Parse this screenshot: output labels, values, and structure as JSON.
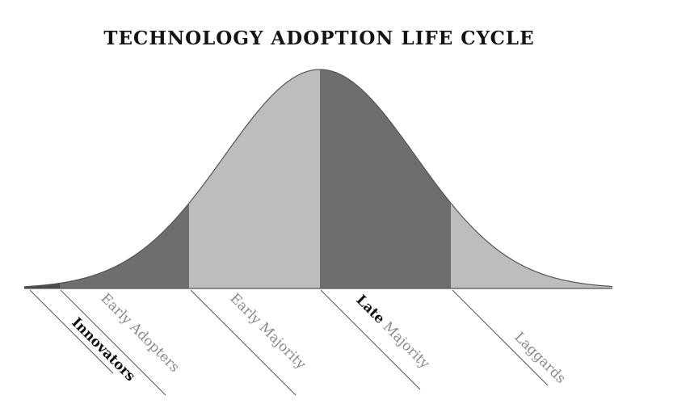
{
  "title": "TECHNOLOGY ADOPTION LIFE CYCLE",
  "colors": {
    "segment_dark": "#6e6e6e",
    "segment_light": "#bdbdbd",
    "segment_darkest": "#4a4a4a",
    "curve_outline": "#555555",
    "label_dark": "#111111",
    "label_grey": "#8a8a8a"
  },
  "segments": [
    {
      "name": "Innovators"
    },
    {
      "name": "Early Adopters"
    },
    {
      "name": "Early Majority"
    },
    {
      "name": "Late Majority"
    },
    {
      "name": "Laggards"
    }
  ],
  "labels": {
    "innovators": "Innovators",
    "early_adopters": "Early Adopters",
    "early_majority": "Early Majority",
    "late_bold": "Late",
    "late_rest": " Majority",
    "laggards": "Laggards"
  }
}
